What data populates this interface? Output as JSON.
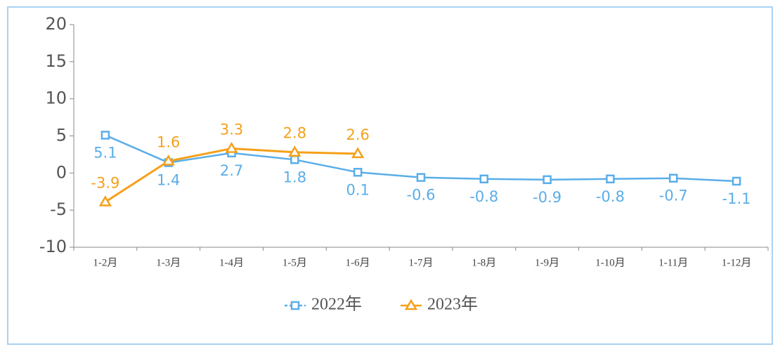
{
  "chart_data": {
    "type": "line",
    "categories": [
      "1-2月",
      "1-3月",
      "1-4月",
      "1-5月",
      "1-6月",
      "1-7月",
      "1-8月",
      "1-9月",
      "1-10月",
      "1-11月",
      "1-12月"
    ],
    "series": [
      {
        "name": "2022年",
        "color": "#5aaee8",
        "marker": "square",
        "values": [
          5.1,
          1.4,
          2.7,
          1.8,
          0.1,
          -0.6,
          -0.8,
          -0.9,
          -0.8,
          -0.7,
          -1.1
        ]
      },
      {
        "name": "2023年",
        "color": "#f5a01a",
        "marker": "triangle",
        "values": [
          -3.9,
          1.6,
          3.3,
          2.8,
          2.6,
          null,
          null,
          null,
          null,
          null,
          null
        ]
      }
    ],
    "ylim": [
      -10,
      20
    ],
    "yticks": [
      -10,
      -5,
      0,
      5,
      10,
      15,
      20
    ],
    "grid": false,
    "legend": "bottom"
  }
}
